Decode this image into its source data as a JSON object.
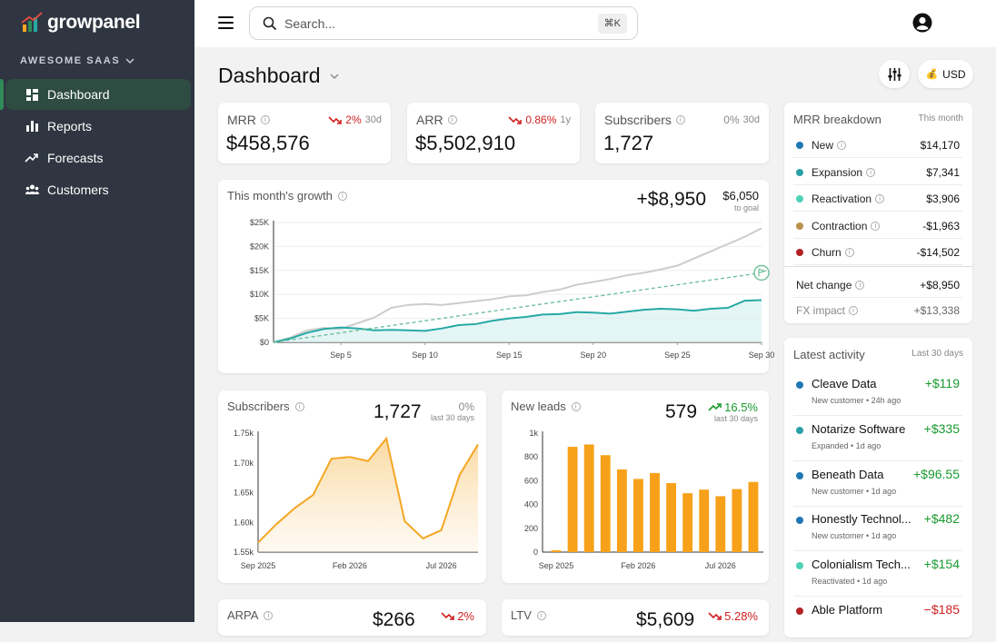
{
  "app": {
    "name": "growpanel",
    "workspace": "AWESOME SAAS"
  },
  "nav": [
    {
      "label": "Dashboard",
      "icon": "dashboard-icon",
      "active": true
    },
    {
      "label": "Reports",
      "icon": "bar-chart-icon",
      "active": false
    },
    {
      "label": "Forecasts",
      "icon": "trend-icon",
      "active": false
    },
    {
      "label": "Customers",
      "icon": "users-icon",
      "active": false
    }
  ],
  "search": {
    "placeholder": "Search...",
    "shortcut": "⌘K"
  },
  "page": {
    "title": "Dashboard",
    "currency": "USD"
  },
  "kpis": {
    "mrr": {
      "label": "MRR",
      "value": "$458,576",
      "change": "2%",
      "period": "30d"
    },
    "arr": {
      "label": "ARR",
      "value": "$5,502,910",
      "change": "0.86%",
      "period": "1y"
    },
    "subscribers": {
      "label": "Subscribers",
      "value": "1,727",
      "change": "0%",
      "period": "30d"
    }
  },
  "growth": {
    "title": "This month's growth",
    "value": "+$8,950",
    "goal_value": "$6,050",
    "goal_label": "to goal"
  },
  "subscribers_card": {
    "title": "Subscribers",
    "value": "1,727",
    "change": "0%",
    "period": "last 30 days"
  },
  "leads_card": {
    "title": "New leads",
    "value": "579",
    "change": "16.5%",
    "period": "last 30 days"
  },
  "arpa_card": {
    "title": "ARPA",
    "value": "$266",
    "change": "2%"
  },
  "ltv_card": {
    "title": "LTV",
    "value": "$5,609",
    "change": "5.28%"
  },
  "breakdown": {
    "title": "MRR breakdown",
    "period": "This month",
    "rows": [
      {
        "label": "New",
        "value": "$14,170",
        "color": "#1f77b4"
      },
      {
        "label": "Expansion",
        "value": "$7,341",
        "color": "#2aa0a8"
      },
      {
        "label": "Reactivation",
        "value": "$3,906",
        "color": "#4fd1b5"
      },
      {
        "label": "Contraction",
        "value": "-$1,963",
        "color": "#b8914a"
      },
      {
        "label": "Churn",
        "value": "-$14,502",
        "color": "#b22222"
      }
    ],
    "net_label": "Net change",
    "net_value": "+$8,950",
    "fx_label": "FX impact",
    "fx_value": "+$13,338"
  },
  "activity": {
    "title": "Latest activity",
    "period": "Last 30 days",
    "items": [
      {
        "name": "Cleave Data",
        "meta": "New customer • 24h ago",
        "amount": "+$119",
        "color": "#1f77b4",
        "positive": true
      },
      {
        "name": "Notarize Software",
        "meta": "Expanded • 1d ago",
        "amount": "+$335",
        "color": "#2aa0a8",
        "positive": true
      },
      {
        "name": "Beneath Data",
        "meta": "New customer • 1d ago",
        "amount": "+$96.55",
        "color": "#1f77b4",
        "positive": true
      },
      {
        "name": "Honestly Technol...",
        "meta": "New customer • 1d ago",
        "amount": "+$482",
        "color": "#1f77b4",
        "positive": true
      },
      {
        "name": "Colonialism Tech...",
        "meta": "Reactivated • 1d ago",
        "amount": "+$154",
        "color": "#4fd1b5",
        "positive": true
      },
      {
        "name": "Able Platform",
        "meta": "",
        "amount": "−$185",
        "color": "#b22222",
        "positive": false
      }
    ]
  },
  "chart_data": [
    {
      "type": "line",
      "title": "This month's growth",
      "x_ticks": [
        "Sep 5",
        "Sep 10",
        "Sep 15",
        "Sep 20",
        "Sep 25",
        "Sep 30"
      ],
      "y_ticks": [
        "$0",
        "$5K",
        "$10K",
        "$15K",
        "$20K",
        "$25K"
      ],
      "ylim": [
        0,
        25000
      ],
      "x_days": [
        1,
        2,
        3,
        4,
        5,
        6,
        7,
        8,
        9,
        10,
        11,
        12,
        13,
        14,
        15,
        16,
        17,
        18,
        19,
        20,
        21,
        22,
        23,
        24,
        25,
        26,
        27,
        28,
        29,
        30
      ],
      "series": [
        {
          "name": "",
          "color": "#cccccc",
          "values": [
            0,
            1000,
            2500,
            3000,
            2800,
            4000,
            5200,
            7200,
            7800,
            8000,
            7800,
            8200,
            8600,
            9000,
            9600,
            9800,
            10500,
            11000,
            12000,
            12600,
            13200,
            14000,
            14500,
            15200,
            16000,
            17500,
            19000,
            20500,
            22000,
            23800
          ]
        },
        {
          "name": "",
          "color": "#26a9a5",
          "values": [
            0,
            800,
            2000,
            2800,
            3100,
            2900,
            2500,
            2600,
            2500,
            2400,
            2900,
            3600,
            3800,
            4500,
            5000,
            5300,
            5800,
            5900,
            6300,
            6200,
            6000,
            6400,
            6800,
            7000,
            6900,
            6600,
            7000,
            7200,
            8700,
            8800
          ]
        },
        {
          "name": "",
          "color": "#6fbf9a",
          "dashed": true,
          "values": [
            0,
            500,
            1000,
            1500,
            2000,
            2500,
            3000,
            3500,
            4000,
            4500,
            5000,
            5500,
            6000,
            6500,
            7000,
            7500,
            8000,
            8500,
            9000,
            9500,
            10000,
            10500,
            11000,
            11500,
            12000,
            12500,
            13000,
            13500,
            14000,
            14500
          ]
        }
      ]
    },
    {
      "type": "area",
      "title": "Subscribers",
      "x_ticks": [
        "Sep 2025",
        "Feb 2026",
        "Jul 2026"
      ],
      "y_ticks": [
        "1.55k",
        "1.60k",
        "1.65k",
        "1.70k",
        "1.75k"
      ],
      "ylim": [
        1550,
        1750
      ],
      "values": [
        1566,
        1597,
        1624,
        1646,
        1707,
        1710,
        1703,
        1741,
        1602,
        1573,
        1587,
        1680,
        1731
      ],
      "color": "#f5a623"
    },
    {
      "type": "bar",
      "title": "New leads",
      "x_ticks": [
        "Sep 2025",
        "Feb 2026",
        "Jul 2026"
      ],
      "y_ticks": [
        "0",
        "200",
        "400",
        "600",
        "800",
        "1k"
      ],
      "ylim": [
        0,
        1000
      ],
      "values": [
        15,
        885,
        905,
        815,
        695,
        615,
        665,
        580,
        495,
        525,
        470,
        530,
        590
      ],
      "color": "#f7a11a"
    }
  ]
}
